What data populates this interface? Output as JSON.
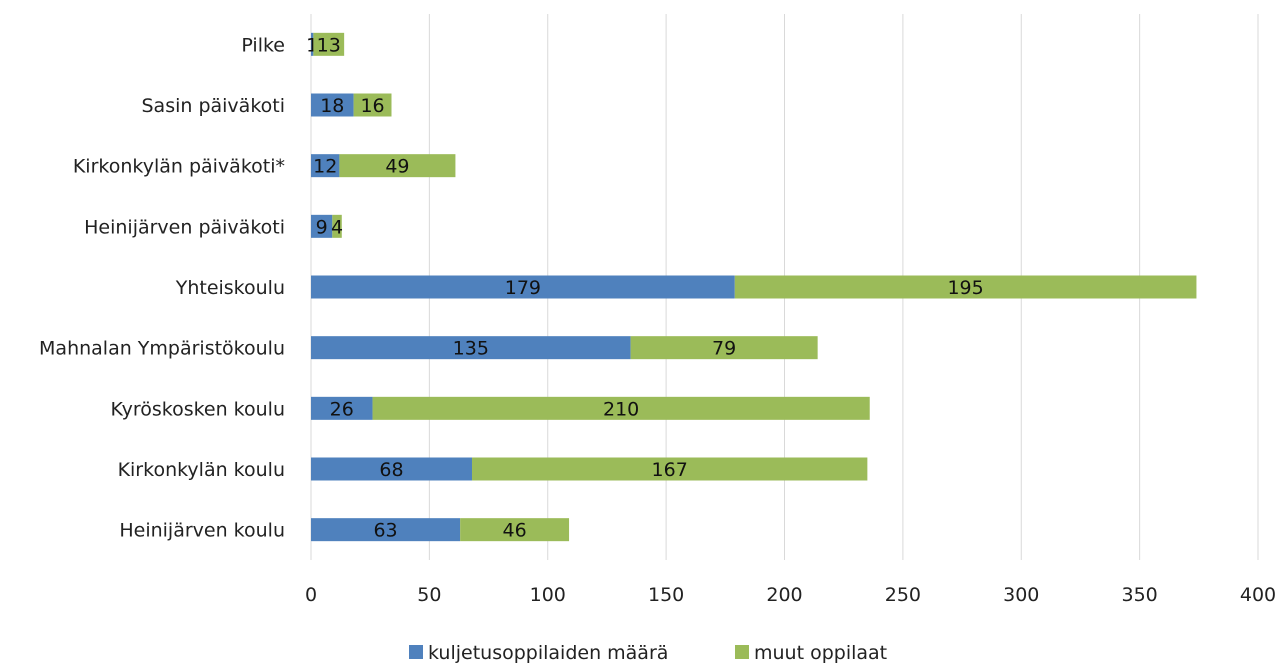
{
  "chart_data": {
    "type": "bar",
    "orientation": "horizontal",
    "stacked": true,
    "title": "",
    "xlabel": "",
    "ylabel": "",
    "xlim": [
      0,
      400
    ],
    "x_ticks": [
      0,
      50,
      100,
      150,
      200,
      250,
      300,
      350,
      400
    ],
    "grid": "vertical",
    "legend_position": "bottom",
    "categories": [
      "Pilke",
      "Sasin päiväkoti",
      "Kirkonkylän päiväkoti*",
      "Heinijärven päiväkoti",
      "Yhteiskoulu",
      "Mahnalan Ympäristökoulu",
      "Kyröskosken koulu",
      "Kirkonkylän koulu",
      "Heinijärven koulu"
    ],
    "series": [
      {
        "name": "kuljetusoppilaiden määrä",
        "color": "#4f81bd",
        "values": [
          1,
          18,
          12,
          9,
          179,
          135,
          26,
          68,
          63
        ]
      },
      {
        "name": "muut oppilaat",
        "color": "#9bbb59",
        "values": [
          13,
          16,
          49,
          4,
          195,
          79,
          210,
          167,
          46
        ]
      }
    ]
  }
}
